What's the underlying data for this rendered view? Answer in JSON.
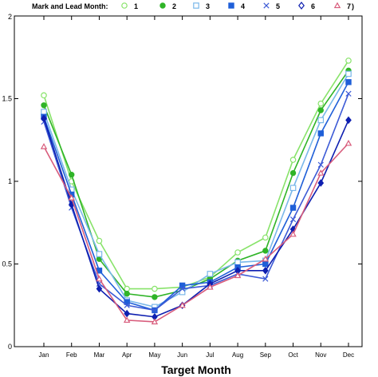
{
  "chart_data": {
    "type": "line",
    "title": "",
    "xlabel": "Target Month",
    "ylabel": "",
    "categories": [
      "Jan",
      "Feb",
      "Mar",
      "Apr",
      "May",
      "Jun",
      "Jul",
      "Aug",
      "Sep",
      "Oct",
      "Nov",
      "Dec"
    ],
    "ylim": [
      0,
      2
    ],
    "yticks": [
      "0",
      "0.5",
      "1",
      "1.5",
      "2"
    ],
    "grid": false,
    "legend": {
      "placement": "top",
      "title": "Mark and Lead Month:",
      "closing": ")"
    },
    "series": [
      {
        "name": "1",
        "color": "#88e36a",
        "marker": "circle-open",
        "values": [
          1.52,
          1.0,
          0.64,
          0.35,
          0.35,
          0.36,
          0.42,
          0.57,
          0.66,
          1.13,
          1.47,
          1.73
        ]
      },
      {
        "name": "2",
        "color": "#2fb427",
        "marker": "circle-filled",
        "values": [
          1.46,
          1.04,
          0.53,
          0.32,
          0.3,
          0.34,
          0.41,
          0.52,
          0.58,
          1.05,
          1.43,
          1.67
        ]
      },
      {
        "name": "3",
        "color": "#7ab8ea",
        "marker": "square-open",
        "values": [
          1.42,
          0.95,
          0.56,
          0.28,
          0.24,
          0.33,
          0.44,
          0.51,
          0.52,
          0.96,
          1.37,
          1.65
        ]
      },
      {
        "name": "4",
        "color": "#1f5fd8",
        "marker": "square-filled",
        "values": [
          1.39,
          0.92,
          0.46,
          0.27,
          0.22,
          0.37,
          0.39,
          0.48,
          0.5,
          0.84,
          1.29,
          1.6
        ]
      },
      {
        "name": "5",
        "color": "#3d5bd6",
        "marker": "x",
        "values": [
          1.36,
          0.84,
          0.38,
          0.25,
          0.22,
          0.35,
          0.37,
          0.44,
          0.41,
          0.77,
          1.1,
          1.53
        ]
      },
      {
        "name": "6",
        "color": "#0e1fb0",
        "marker": "diamond-filled",
        "values": [
          1.38,
          0.86,
          0.35,
          0.2,
          0.18,
          0.25,
          0.38,
          0.46,
          0.46,
          0.71,
          0.99,
          1.37
        ]
      },
      {
        "name": "7",
        "color": "#d85c7c",
        "marker": "triangle-open",
        "values": [
          1.21,
          0.9,
          0.41,
          0.16,
          0.15,
          0.25,
          0.36,
          0.43,
          0.53,
          0.68,
          1.05,
          1.23
        ]
      }
    ]
  }
}
